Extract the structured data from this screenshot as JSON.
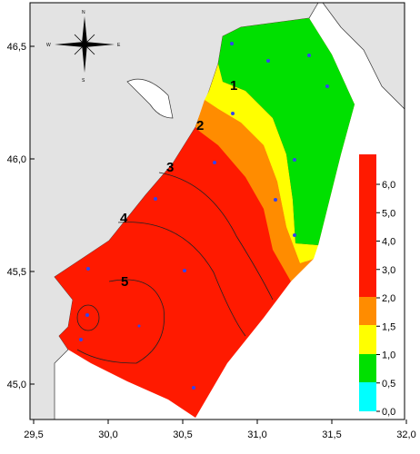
{
  "map": {
    "x_axis_labels": [
      "29,5",
      "30,0",
      "30,5",
      "31,0",
      "31,5",
      "32,0"
    ],
    "y_axis_labels": [
      "46,5",
      "46,0",
      "45,5",
      "45,0"
    ],
    "colorbar_labels": [
      "6,0",
      "5,0",
      "4,0",
      "3,0",
      "2,0",
      "1,5",
      "1,0",
      "0,5",
      "0,0"
    ],
    "contour_labels": [
      "1",
      "2",
      "3",
      "4",
      "5"
    ],
    "compass": [
      "N",
      "S",
      "W",
      "E"
    ]
  }
}
